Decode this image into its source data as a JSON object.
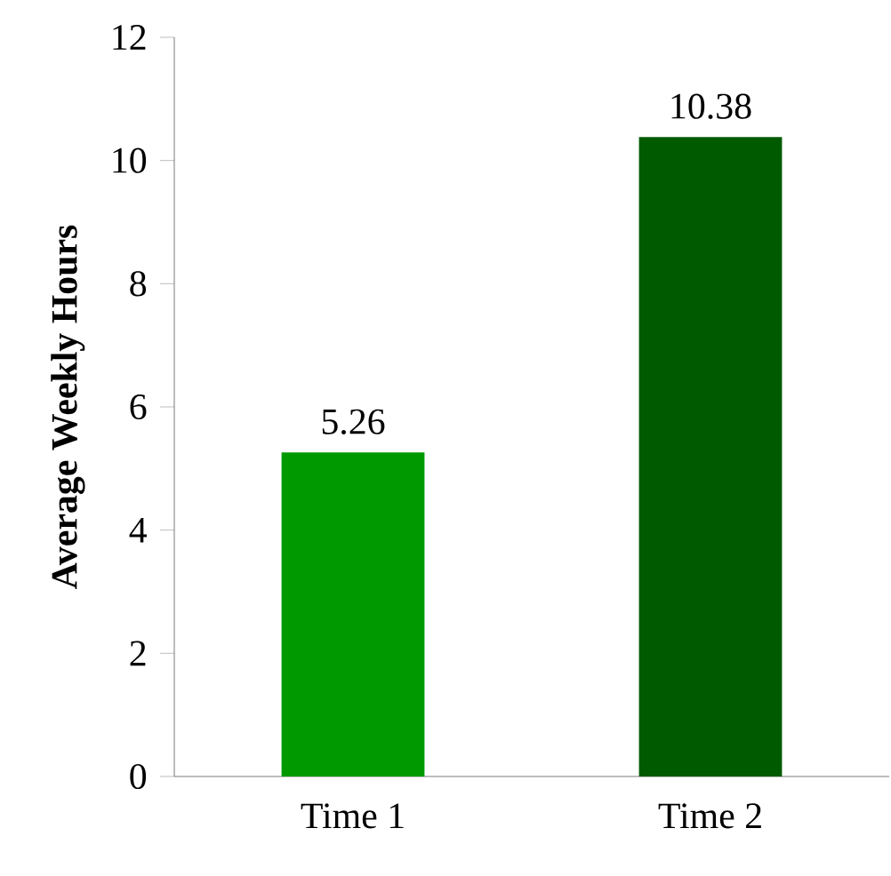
{
  "chart_data": {
    "type": "bar",
    "ylabel": "Average Weekly Hours",
    "categories": [
      "Time 1",
      "Time 2"
    ],
    "values": [
      5.26,
      10.38
    ],
    "colors": [
      "#009900",
      "#005a00"
    ],
    "ylim": [
      0,
      12
    ],
    "yticks": [
      0,
      2,
      4,
      6,
      8,
      10,
      12
    ],
    "data_labels": true
  }
}
